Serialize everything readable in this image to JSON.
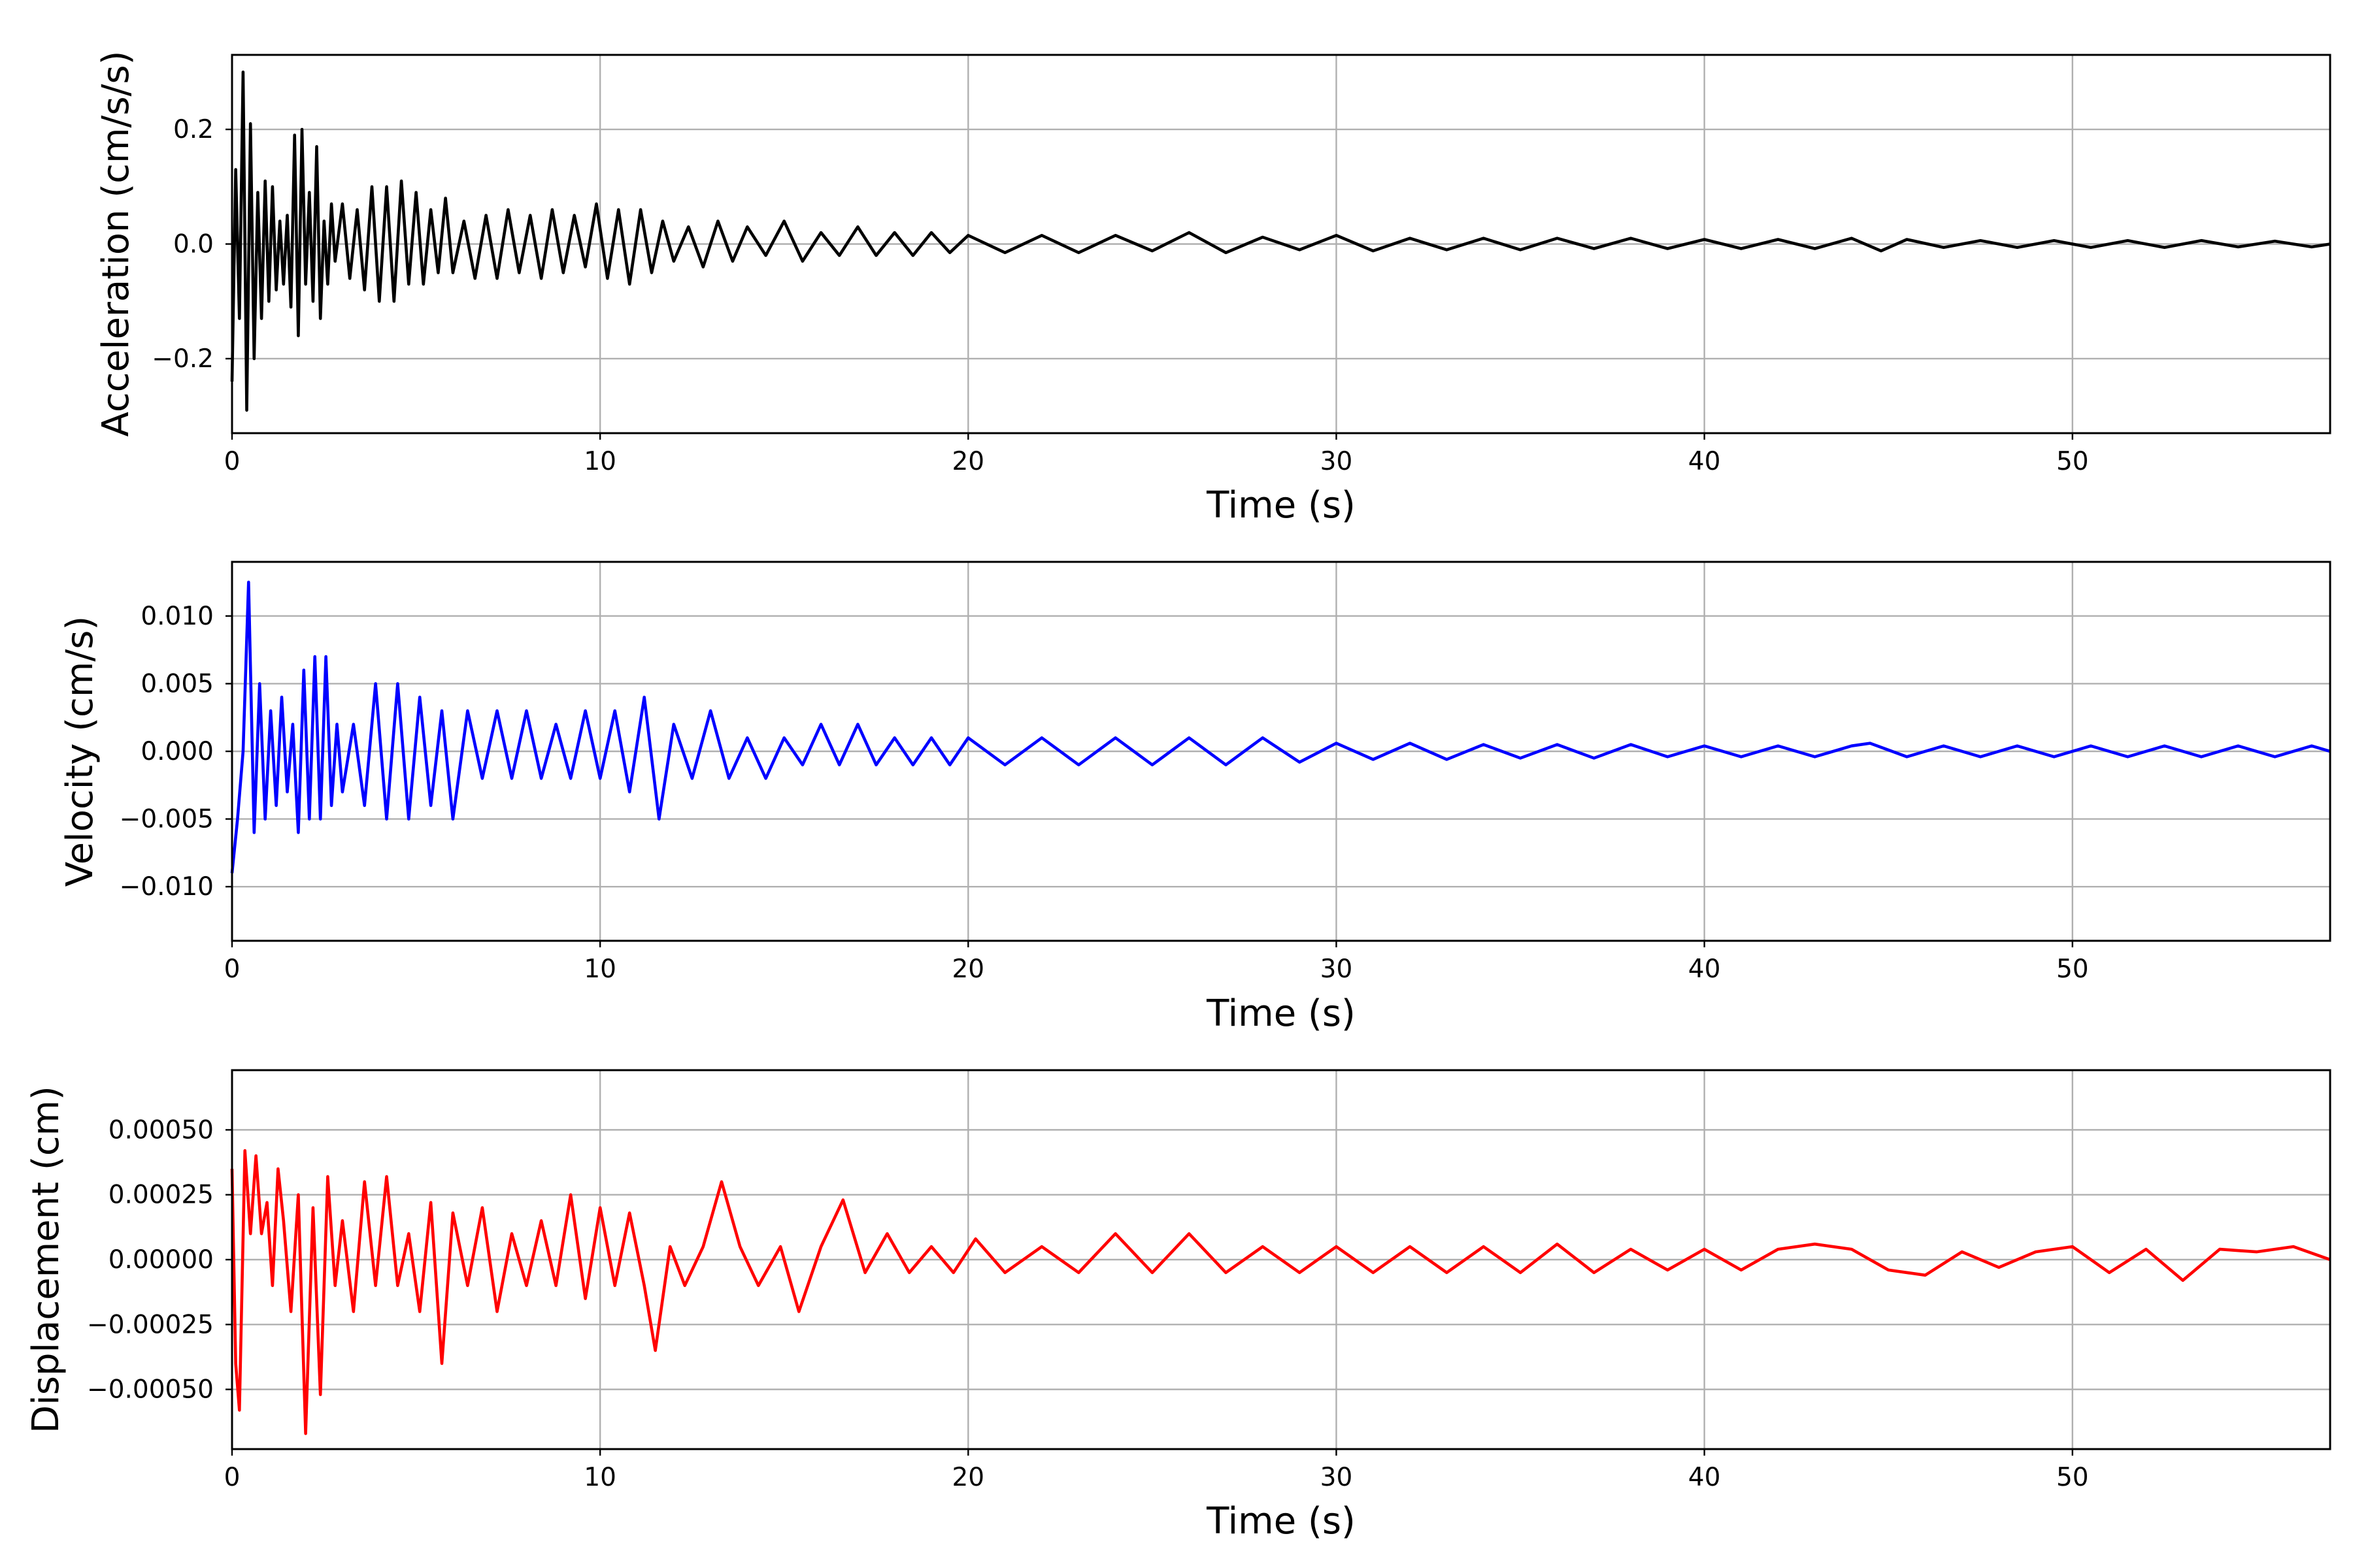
{
  "chart_data": [
    {
      "type": "line",
      "title": "",
      "xlabel": "Time (s)",
      "ylabel": "Acceleration (cm/s/s)",
      "xlim": [
        0,
        57
      ],
      "ylim": [
        -0.33,
        0.33
      ],
      "xticks": [
        0,
        10,
        20,
        30,
        40,
        50
      ],
      "xtick_labels": [
        "0",
        "10",
        "20",
        "30",
        "40",
        "50"
      ],
      "yticks": [
        -0.2,
        0.0,
        0.2
      ],
      "ytick_labels": [
        "−0.2",
        "0.0",
        "0.2"
      ],
      "grid": true,
      "series": [
        {
          "color": "#000000",
          "x": [
            0,
            0.1,
            0.2,
            0.3,
            0.4,
            0.5,
            0.6,
            0.7,
            0.8,
            0.9,
            1.0,
            1.1,
            1.2,
            1.3,
            1.4,
            1.5,
            1.6,
            1.7,
            1.8,
            1.9,
            2.0,
            2.1,
            2.2,
            2.3,
            2.4,
            2.5,
            2.6,
            2.7,
            2.8,
            3.0,
            3.2,
            3.4,
            3.6,
            3.8,
            4.0,
            4.2,
            4.4,
            4.6,
            4.8,
            5.0,
            5.2,
            5.4,
            5.6,
            5.8,
            6.0,
            6.3,
            6.6,
            6.9,
            7.2,
            7.5,
            7.8,
            8.1,
            8.4,
            8.7,
            9.0,
            9.3,
            9.6,
            9.9,
            10.2,
            10.5,
            10.8,
            11.1,
            11.4,
            11.7,
            12.0,
            12.4,
            12.8,
            13.2,
            13.6,
            14.0,
            14.5,
            15.0,
            15.5,
            16.0,
            16.5,
            17.0,
            17.5,
            18.0,
            18.5,
            19.0,
            19.5,
            20.0,
            21,
            22,
            23,
            24,
            25,
            26,
            27,
            28,
            29,
            30,
            31,
            32,
            33,
            34,
            35,
            36,
            37,
            38,
            39,
            40,
            41,
            42,
            43,
            44,
            44.8,
            45.5,
            46.5,
            47.5,
            48.5,
            49.5,
            50.5,
            51.5,
            52.5,
            53.5,
            54.5,
            55.5,
            56.5,
            57
          ],
          "y": [
            -0.24,
            0.13,
            -0.13,
            0.3,
            -0.29,
            0.21,
            -0.2,
            0.09,
            -0.13,
            0.11,
            -0.1,
            0.1,
            -0.08,
            0.04,
            -0.07,
            0.05,
            -0.11,
            0.19,
            -0.16,
            0.2,
            -0.07,
            0.09,
            -0.1,
            0.17,
            -0.13,
            0.04,
            -0.07,
            0.07,
            -0.03,
            0.07,
            -0.06,
            0.06,
            -0.08,
            0.1,
            -0.1,
            0.1,
            -0.1,
            0.11,
            -0.07,
            0.09,
            -0.07,
            0.06,
            -0.05,
            0.08,
            -0.05,
            0.04,
            -0.06,
            0.05,
            -0.06,
            0.06,
            -0.05,
            0.05,
            -0.06,
            0.06,
            -0.05,
            0.05,
            -0.04,
            0.07,
            -0.06,
            0.06,
            -0.07,
            0.06,
            -0.05,
            0.04,
            -0.03,
            0.03,
            -0.04,
            0.04,
            -0.03,
            0.03,
            -0.02,
            0.04,
            -0.03,
            0.02,
            -0.02,
            0.03,
            -0.02,
            0.02,
            -0.02,
            0.02,
            -0.015,
            0.015,
            -0.015,
            0.015,
            -0.015,
            0.015,
            -0.012,
            0.02,
            -0.015,
            0.012,
            -0.01,
            0.015,
            -0.012,
            0.01,
            -0.01,
            0.01,
            -0.01,
            0.01,
            -0.008,
            0.01,
            -0.008,
            0.008,
            -0.008,
            0.008,
            -0.008,
            0.01,
            -0.012,
            0.008,
            -0.006,
            0.006,
            -0.006,
            0.006,
            -0.006,
            0.006,
            -0.006,
            0.006,
            -0.005,
            0.005,
            -0.005,
            0.0
          ]
        }
      ]
    },
    {
      "type": "line",
      "title": "",
      "xlabel": "Time (s)",
      "ylabel": "Velocity (cm/s)",
      "xlim": [
        0,
        57
      ],
      "ylim": [
        -0.014,
        0.014
      ],
      "xticks": [
        0,
        10,
        20,
        30,
        40,
        50
      ],
      "xtick_labels": [
        "0",
        "10",
        "20",
        "30",
        "40",
        "50"
      ],
      "yticks": [
        -0.01,
        -0.005,
        0.0,
        0.005,
        0.01
      ],
      "ytick_labels": [
        "−0.010",
        "−0.005",
        "0.000",
        "0.005",
        "0.010"
      ],
      "grid": true,
      "series": [
        {
          "color": "#0000ff",
          "x": [
            0,
            0.15,
            0.3,
            0.45,
            0.6,
            0.75,
            0.9,
            1.05,
            1.2,
            1.35,
            1.5,
            1.65,
            1.8,
            1.95,
            2.1,
            2.25,
            2.4,
            2.55,
            2.7,
            2.85,
            3.0,
            3.3,
            3.6,
            3.9,
            4.2,
            4.5,
            4.8,
            5.1,
            5.4,
            5.7,
            6.0,
            6.4,
            6.8,
            7.2,
            7.6,
            8.0,
            8.4,
            8.8,
            9.2,
            9.6,
            10.0,
            10.4,
            10.8,
            11.2,
            11.6,
            12.0,
            12.5,
            13.0,
            13.5,
            14.0,
            14.5,
            15.0,
            15.5,
            16.0,
            16.5,
            17.0,
            17.5,
            18.0,
            18.5,
            19.0,
            19.5,
            20.0,
            21,
            22,
            23,
            24,
            25,
            26,
            27,
            28,
            29,
            30,
            31,
            32,
            33,
            34,
            35,
            36,
            37,
            38,
            39,
            40,
            41,
            42,
            43,
            44,
            44.5,
            45.5,
            46.5,
            47.5,
            48.5,
            49.5,
            50.5,
            51.5,
            52.5,
            53.5,
            54.5,
            55.5,
            56.5,
            57
          ],
          "y": [
            -0.009,
            -0.005,
            0.0,
            0.0125,
            -0.006,
            0.005,
            -0.005,
            0.003,
            -0.004,
            0.004,
            -0.003,
            0.002,
            -0.006,
            0.006,
            -0.005,
            0.007,
            -0.005,
            0.007,
            -0.004,
            0.002,
            -0.003,
            0.002,
            -0.004,
            0.005,
            -0.005,
            0.005,
            -0.005,
            0.004,
            -0.004,
            0.003,
            -0.005,
            0.003,
            -0.002,
            0.003,
            -0.002,
            0.003,
            -0.002,
            0.002,
            -0.002,
            0.003,
            -0.002,
            0.003,
            -0.003,
            0.004,
            -0.005,
            0.002,
            -0.002,
            0.003,
            -0.002,
            0.001,
            -0.002,
            0.001,
            -0.001,
            0.002,
            -0.001,
            0.002,
            -0.001,
            0.001,
            -0.001,
            0.001,
            -0.001,
            0.001,
            -0.001,
            0.001,
            -0.001,
            0.001,
            -0.001,
            0.001,
            -0.001,
            0.001,
            -0.0008,
            0.0006,
            -0.0006,
            0.0006,
            -0.0006,
            0.0005,
            -0.0005,
            0.0005,
            -0.0005,
            0.0005,
            -0.0004,
            0.0004,
            -0.0004,
            0.0004,
            -0.0004,
            0.0004,
            0.0006,
            -0.0004,
            0.0004,
            -0.0004,
            0.0004,
            -0.0004,
            0.0004,
            -0.0004,
            0.0004,
            -0.0004,
            0.0004,
            -0.0004,
            0.0004,
            0.0
          ]
        }
      ]
    },
    {
      "type": "line",
      "title": "",
      "xlabel": "Time (s)",
      "ylabel": "Displacement (cm)",
      "xlim": [
        0,
        57
      ],
      "ylim": [
        -0.00073,
        0.00073
      ],
      "xticks": [
        0,
        10,
        20,
        30,
        40,
        50
      ],
      "xtick_labels": [
        "0",
        "10",
        "20",
        "30",
        "40",
        "50"
      ],
      "yticks": [
        -0.0005,
        -0.00025,
        0.0,
        0.00025,
        0.0005
      ],
      "ytick_labels": [
        "−0.00050",
        "−0.00025",
        "0.00000",
        "0.00025",
        "0.00050"
      ],
      "grid": true,
      "series": [
        {
          "color": "#ff0000",
          "x": [
            0,
            0.1,
            0.2,
            0.35,
            0.5,
            0.65,
            0.8,
            0.95,
            1.1,
            1.25,
            1.4,
            1.6,
            1.8,
            2.0,
            2.2,
            2.4,
            2.6,
            2.8,
            3.0,
            3.3,
            3.6,
            3.9,
            4.2,
            4.5,
            4.8,
            5.1,
            5.4,
            5.7,
            6.0,
            6.4,
            6.8,
            7.2,
            7.6,
            8.0,
            8.4,
            8.8,
            9.2,
            9.6,
            10.0,
            10.4,
            10.8,
            11.2,
            11.5,
            11.9,
            12.3,
            12.8,
            13.3,
            13.8,
            14.3,
            14.9,
            15.4,
            16.0,
            16.6,
            17.2,
            17.8,
            18.4,
            19.0,
            19.6,
            20.2,
            21,
            22,
            23,
            24,
            25,
            26,
            27,
            28,
            29,
            30,
            31,
            32,
            33,
            34,
            35,
            36,
            37,
            38,
            39,
            40,
            41,
            42,
            43,
            44,
            45,
            46,
            47,
            48,
            49,
            50,
            51,
            52,
            53,
            54,
            55,
            56,
            57
          ],
          "y": [
            0.00035,
            -0.0004,
            -0.00058,
            0.00042,
            0.0001,
            0.0004,
            0.0001,
            0.00022,
            -0.0001,
            0.00035,
            0.00015,
            -0.0002,
            0.00025,
            -0.00067,
            0.0002,
            -0.00052,
            0.00032,
            -0.0001,
            0.00015,
            -0.0002,
            0.0003,
            -0.0001,
            0.00032,
            -0.0001,
            0.0001,
            -0.0002,
            0.00022,
            -0.0004,
            0.00018,
            -0.0001,
            0.0002,
            -0.0002,
            0.0001,
            -0.0001,
            0.00015,
            -0.0001,
            0.00025,
            -0.00015,
            0.0002,
            -0.0001,
            0.00018,
            -0.0001,
            -0.00035,
            5e-05,
            -0.0001,
            5e-05,
            0.0003,
            5e-05,
            -0.0001,
            5e-05,
            -0.0002,
            5e-05,
            0.00023,
            -5e-05,
            0.0001,
            -5e-05,
            5e-05,
            -5e-05,
            8e-05,
            -5e-05,
            5e-05,
            -5e-05,
            0.0001,
            -5e-05,
            0.0001,
            -5e-05,
            5e-05,
            -5e-05,
            5e-05,
            -5e-05,
            5e-05,
            -5e-05,
            5e-05,
            -5e-05,
            6e-05,
            -5e-05,
            4e-05,
            -4e-05,
            4e-05,
            -4e-05,
            4e-05,
            6e-05,
            4e-05,
            -4e-05,
            -6e-05,
            3e-05,
            -3e-05,
            3e-05,
            5e-05,
            -5e-05,
            4e-05,
            -8e-05,
            4e-05,
            3e-05,
            5e-05,
            0.0
          ]
        }
      ]
    }
  ]
}
